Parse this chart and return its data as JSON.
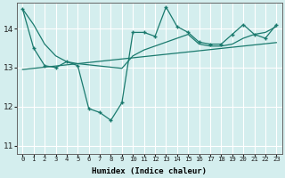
{
  "xlabel": "Humidex (Indice chaleur)",
  "bg_color": "#d4eeee",
  "grid_color": "#b8d8d8",
  "line_color": "#1a7a6e",
  "xlim": [
    -0.5,
    23.5
  ],
  "ylim": [
    10.8,
    14.65
  ],
  "yticks": [
    11,
    12,
    13,
    14
  ],
  "xtick_labels": [
    "0",
    "1",
    "2",
    "3",
    "4",
    "5",
    "6",
    "7",
    "8",
    "9",
    "10",
    "11",
    "12",
    "13",
    "14",
    "15",
    "16",
    "17",
    "18",
    "19",
    "20",
    "21",
    "22",
    "23"
  ],
  "series1_x": [
    0,
    1,
    2,
    3,
    4,
    5,
    6,
    7,
    8,
    9,
    10,
    11,
    12,
    13,
    14,
    15,
    16,
    17,
    18,
    19,
    20,
    21,
    22,
    23
  ],
  "series1_y": [
    14.5,
    13.5,
    13.05,
    13.0,
    13.15,
    13.05,
    11.95,
    11.85,
    11.65,
    12.1,
    13.9,
    13.9,
    13.8,
    14.55,
    14.05,
    13.9,
    13.65,
    13.6,
    13.6,
    13.85,
    14.1,
    13.85,
    13.75,
    14.1
  ],
  "series2_x": [
    0,
    1,
    2,
    3,
    4,
    5,
    6,
    7,
    8,
    9,
    10,
    11,
    12,
    13,
    14,
    15,
    16,
    17,
    18,
    19,
    20,
    21,
    22,
    23
  ],
  "series2_y": [
    12.95,
    12.98,
    13.01,
    13.04,
    13.07,
    13.1,
    13.13,
    13.16,
    13.19,
    13.22,
    13.25,
    13.28,
    13.31,
    13.34,
    13.37,
    13.4,
    13.43,
    13.46,
    13.49,
    13.52,
    13.55,
    13.58,
    13.61,
    13.64
  ],
  "series3_x": [
    0,
    1,
    2,
    3,
    4,
    5,
    6,
    7,
    8,
    9,
    10,
    11,
    12,
    13,
    14,
    15,
    16,
    17,
    18,
    19,
    20,
    21,
    22,
    23
  ],
  "series3_y": [
    14.5,
    14.1,
    13.6,
    13.3,
    13.15,
    13.1,
    13.07,
    13.04,
    13.01,
    12.98,
    13.3,
    13.45,
    13.55,
    13.65,
    13.75,
    13.85,
    13.6,
    13.55,
    13.55,
    13.6,
    13.75,
    13.85,
    13.9,
    14.05
  ]
}
